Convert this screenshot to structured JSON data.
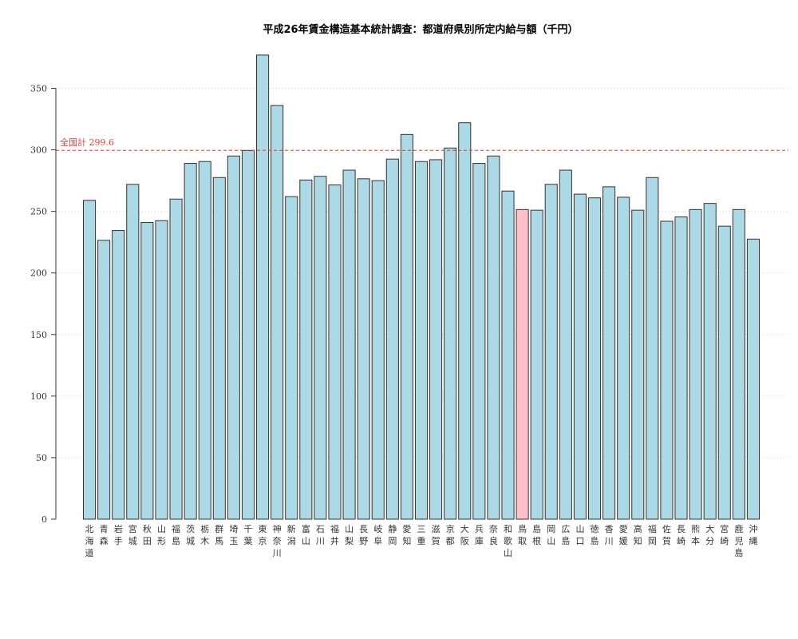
{
  "chart_data": {
    "type": "bar",
    "title": "平成26年賃金構造基本統計調査：都道府県別所定内給与額（千円）",
    "xlabel": "",
    "ylabel": "",
    "ylim": [
      0,
      375
    ],
    "yticks": [
      0,
      50,
      100,
      150,
      200,
      250,
      300,
      350
    ],
    "grid": "horizontal-dotted",
    "categories": [
      "北海道",
      "青森",
      "岩手",
      "宮城",
      "秋田",
      "山形",
      "福島",
      "茨城",
      "栃木",
      "群馬",
      "埼玉",
      "千葉",
      "東京",
      "神奈川",
      "新潟",
      "富山",
      "石川",
      "福井",
      "山梨",
      "長野",
      "岐阜",
      "静岡",
      "愛知",
      "三重",
      "滋賀",
      "京都",
      "大阪",
      "兵庫",
      "奈良",
      "和歌山",
      "鳥取",
      "島根",
      "岡山",
      "広島",
      "山口",
      "徳島",
      "香川",
      "愛媛",
      "高知",
      "福岡",
      "佐賀",
      "長崎",
      "熊本",
      "大分",
      "宮崎",
      "鹿児島",
      "沖縄"
    ],
    "values": [
      259,
      226.5,
      234.5,
      272,
      241,
      242.5,
      260,
      289,
      290.5,
      277.5,
      295,
      299.5,
      377,
      336,
      262,
      275.5,
      278.5,
      271.5,
      283.5,
      276.5,
      275,
      292.5,
      312.5,
      290.5,
      292,
      301.5,
      322,
      289,
      295,
      266.5,
      251.5,
      251,
      272,
      283.5,
      264,
      261,
      270,
      261.5,
      251,
      277.5,
      242,
      245.5,
      251.5,
      256.5,
      238,
      251.5,
      227.5
    ],
    "highlight": {
      "category": "鳥取",
      "color": "#ffc0cb",
      "label_color": "#e03c3c"
    },
    "reference_line": {
      "label": "全国計 299.6",
      "value": 299.6,
      "color": "#e03c3c"
    },
    "colors": {
      "bar": "#add8e6",
      "bar_stroke": "#333333",
      "grid": "#cccccc"
    }
  }
}
